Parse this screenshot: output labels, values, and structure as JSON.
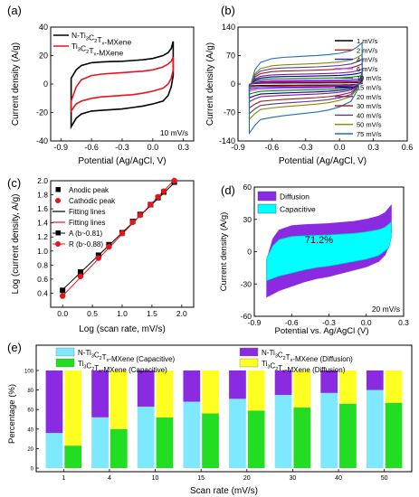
{
  "panel_labels": [
    "(a)",
    "(b)",
    "(c)",
    "(d)",
    "(e)"
  ],
  "chart_data": [
    {
      "panel": "(a)",
      "type": "line",
      "xlabel": "Potential (Ag/AgCl, V)",
      "ylabel": "Current density (A/g)",
      "xlim": [
        -1.0,
        0.4
      ],
      "ylim": [
        -40,
        40
      ],
      "xticks": [
        "-0.9",
        "-0.6",
        "-0.3",
        "0.0",
        "0.3"
      ],
      "yticks": [
        "-40",
        "-20",
        "0",
        "20",
        "40"
      ],
      "annotation": "10 mV/s",
      "legend_position": "top-left",
      "series": [
        {
          "name": "N-Ti3C2Tx-MXene",
          "color": "#000000",
          "x_upper": [
            -0.8,
            -0.75,
            -0.7,
            -0.6,
            -0.5,
            -0.4,
            -0.3,
            -0.2,
            -0.1,
            0.0,
            0.1,
            0.15,
            0.18,
            0.2
          ],
          "y_upper": [
            4,
            10,
            13,
            15,
            15.5,
            15.8,
            16,
            16.5,
            17,
            18,
            20,
            22,
            25,
            30
          ],
          "x_lower": [
            0.2,
            0.18,
            0.15,
            0.1,
            0.0,
            -0.1,
            -0.2,
            -0.3,
            -0.4,
            -0.5,
            -0.6,
            -0.7,
            -0.75,
            -0.8
          ],
          "y_lower": [
            6,
            -2,
            -8,
            -12,
            -14,
            -15.5,
            -16.5,
            -17.5,
            -18,
            -18.5,
            -19,
            -21,
            -24,
            -30
          ]
        },
        {
          "name": "Ti3C2Tx-MXene",
          "color": "#e8141c",
          "x_upper": [
            -0.8,
            -0.75,
            -0.7,
            -0.6,
            -0.5,
            -0.4,
            -0.3,
            -0.2,
            -0.1,
            0.0,
            0.1,
            0.15,
            0.18,
            0.2
          ],
          "y_upper": [
            -12,
            -2,
            3,
            6,
            7,
            7.5,
            8,
            8.5,
            9,
            10,
            12,
            14,
            16,
            19
          ],
          "x_lower": [
            0.2,
            0.18,
            0.15,
            0.1,
            0.0,
            -0.1,
            -0.2,
            -0.3,
            -0.4,
            -0.5,
            -0.6,
            -0.7,
            -0.75,
            -0.8
          ],
          "y_lower": [
            10,
            4,
            0,
            -3,
            -5,
            -6.5,
            -7.5,
            -8,
            -8.5,
            -9,
            -10,
            -12,
            -14,
            -19
          ]
        }
      ]
    },
    {
      "panel": "(b)",
      "type": "line",
      "xlabel": "Potential (Ag/AgCl, V)",
      "ylabel": "Current density (A/g)",
      "xlim": [
        -0.9,
        0.6
      ],
      "ylim": [
        -140,
        140
      ],
      "xticks": [
        "-0.9",
        "-0.6",
        "-0.3",
        "0.0",
        "0.3",
        "0.6"
      ],
      "yticks": [
        "-140",
        "-70",
        "0",
        "70",
        "140"
      ],
      "legend_position": "right",
      "series": [
        {
          "name": "1 mV/s",
          "color": "#000000",
          "scale": 3
        },
        {
          "name": "2 mV/s",
          "color": "#e8141c",
          "scale": 5
        },
        {
          "name": "4 mV/s",
          "color": "#1a1aff",
          "scale": 8
        },
        {
          "name": "6 mV/s",
          "color": "#e040fb",
          "scale": 11
        },
        {
          "name": "10 mV/s",
          "color": "#008b00",
          "scale": 16
        },
        {
          "name": "15 mV/s",
          "color": "#00008b",
          "scale": 22
        },
        {
          "name": "20 mV/s",
          "color": "#7b1fa2",
          "scale": 28
        },
        {
          "name": "30 mV/s",
          "color": "#9b1b1b",
          "scale": 38
        },
        {
          "name": "40 mV/s",
          "color": "#5b3a8c",
          "scale": 47
        },
        {
          "name": "50 mV/s",
          "color": "#8a8a00",
          "scale": 56
        },
        {
          "name": "75 mV/s",
          "color": "#1f6fb2",
          "scale": 78
        }
      ]
    },
    {
      "panel": "(c)",
      "type": "scatter",
      "xlabel": "Log (scan rate, mV/s)",
      "ylabel": "Log (current density, A/g)",
      "xlim": [
        -0.2,
        2.2
      ],
      "ylim": [
        0.2,
        2.0
      ],
      "xticks": [
        "0.0",
        "0.5",
        "1.0",
        "1.5",
        "2.0"
      ],
      "yticks": [
        "0.4",
        "0.6",
        "0.8",
        "1.0",
        "1.2",
        "1.4",
        "1.6",
        "1.8",
        "2.0"
      ],
      "legend_position": "top-left",
      "x": [
        0.0,
        0.301,
        0.602,
        0.778,
        1.0,
        1.176,
        1.301,
        1.477,
        1.602,
        1.699,
        1.875
      ],
      "series": [
        {
          "name": "Anodic peak",
          "marker": "square",
          "color": "#000000",
          "values": [
            0.44,
            0.7,
            0.94,
            1.09,
            1.26,
            1.42,
            1.52,
            1.66,
            1.76,
            1.84,
            1.98
          ]
        },
        {
          "name": "Cathodic peak",
          "marker": "circle",
          "color": "#e8141c",
          "values": [
            0.36,
            0.64,
            0.9,
            1.06,
            1.25,
            1.41,
            1.51,
            1.66,
            1.77,
            1.85,
            2.0
          ]
        }
      ],
      "fits": [
        {
          "name": "Fitting lines",
          "color": "#000000",
          "intercept": 0.45,
          "slope": 0.81
        },
        {
          "name": "Fitting lines",
          "color": "#e8141c",
          "intercept": 0.36,
          "slope": 0.88
        }
      ],
      "legend_text": [
        "A (b~0.81)",
        "R (b~0.88)"
      ]
    },
    {
      "panel": "(d)",
      "type": "area",
      "xlabel": "Potential vs. Ag/AgCl (V)",
      "ylabel": "Current density (A/g)",
      "xlim": [
        -0.9,
        0.3
      ],
      "ylim": [
        -60,
        60
      ],
      "xticks": [
        "-0.9",
        "-0.6",
        "-0.3",
        "0.0",
        "0.3"
      ],
      "yticks": [
        "-60",
        "-30",
        "0",
        "30",
        "60"
      ],
      "annotation": "71.2%",
      "scan_label": "20 mV/s",
      "legend_position": "top-left",
      "series": [
        {
          "name": "Diffusion",
          "color": "#8a2be2"
        },
        {
          "name": "Capacitive",
          "color": "#00ffff"
        }
      ],
      "outer_upper_x": [
        -0.8,
        -0.75,
        -0.7,
        -0.6,
        -0.5,
        -0.4,
        -0.3,
        -0.2,
        -0.1,
        0.0,
        0.1,
        0.15,
        0.18,
        0.2
      ],
      "outer_upper_y": [
        -8,
        12,
        20,
        24,
        25,
        25.5,
        26,
        27,
        28,
        30,
        33,
        36,
        40,
        43
      ],
      "outer_lower_x": [
        0.2,
        0.18,
        0.15,
        0.1,
        0.0,
        -0.1,
        -0.2,
        -0.3,
        -0.4,
        -0.5,
        -0.6,
        -0.7,
        -0.75,
        -0.8
      ],
      "outer_lower_y": [
        18,
        5,
        -3,
        -9,
        -14,
        -17,
        -20,
        -23,
        -25,
        -28,
        -32,
        -36,
        -39,
        -42
      ],
      "capacitive_fraction": 0.712
    },
    {
      "panel": "(e)",
      "type": "bar",
      "xlabel": "Scan rate (mV/s)",
      "ylabel": "Percentage (%)",
      "ylim": [
        0,
        100
      ],
      "yticks": [
        "0",
        "20",
        "40",
        "60",
        "80",
        "100"
      ],
      "categories": [
        "1",
        "4",
        "10",
        "15",
        "20",
        "30",
        "40",
        "50"
      ],
      "legend_position": "top",
      "series": [
        {
          "name": "N-Ti3C2Tx-MXene (Capacitive)",
          "color": "#7ee8ff",
          "values": [
            36,
            52,
            63,
            68,
            71,
            75,
            77,
            80
          ]
        },
        {
          "name": "N-Ti3C2Tx-MXene (Diffusion)",
          "color": "#8a2be2",
          "values": [
            64,
            48,
            37,
            32,
            29,
            25,
            23,
            20
          ]
        },
        {
          "name": "Ti3C2Tx-MXene (Capacitive)",
          "color": "#22dd22",
          "values": [
            23,
            40,
            52,
            56,
            59,
            62,
            66,
            67
          ]
        },
        {
          "name": "Ti3C2Tx-MXene (Diffusion)",
          "color": "#ffff22",
          "values": [
            77,
            60,
            48,
            44,
            41,
            38,
            34,
            33
          ]
        }
      ]
    }
  ]
}
